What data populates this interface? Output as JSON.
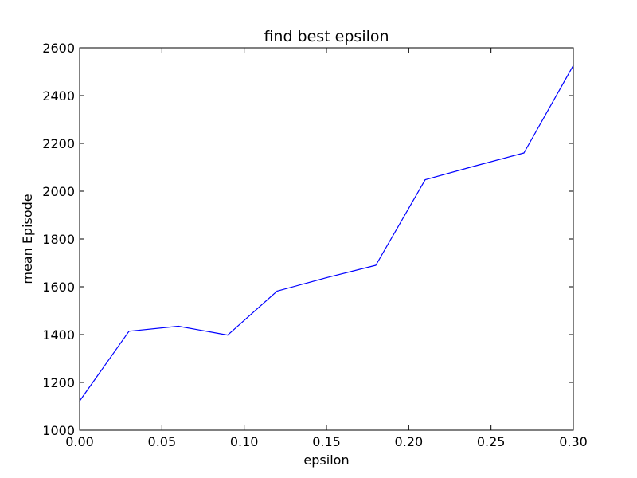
{
  "chart_data": {
    "type": "line",
    "title": "find best epsilon",
    "xlabel": "epsilon",
    "ylabel": "mean Episode",
    "xlim": [
      0.0,
      0.3
    ],
    "ylim": [
      1000,
      2600
    ],
    "xticks": [
      "0.00",
      "0.05",
      "0.10",
      "0.15",
      "0.20",
      "0.25",
      "0.30"
    ],
    "yticks": [
      "1000",
      "1200",
      "1400",
      "1600",
      "1800",
      "2000",
      "2200",
      "2400",
      "2600"
    ],
    "grid": false,
    "legend": "none",
    "series": [
      {
        "color": "#0000ff",
        "x": [
          0.0,
          0.03,
          0.06,
          0.09,
          0.12,
          0.15,
          0.18,
          0.21,
          0.24,
          0.27,
          0.3
        ],
        "y": [
          1122,
          1414,
          1435,
          1398,
          1582,
          1638,
          1690,
          2048,
          2105,
          2160,
          2526
        ]
      }
    ]
  }
}
